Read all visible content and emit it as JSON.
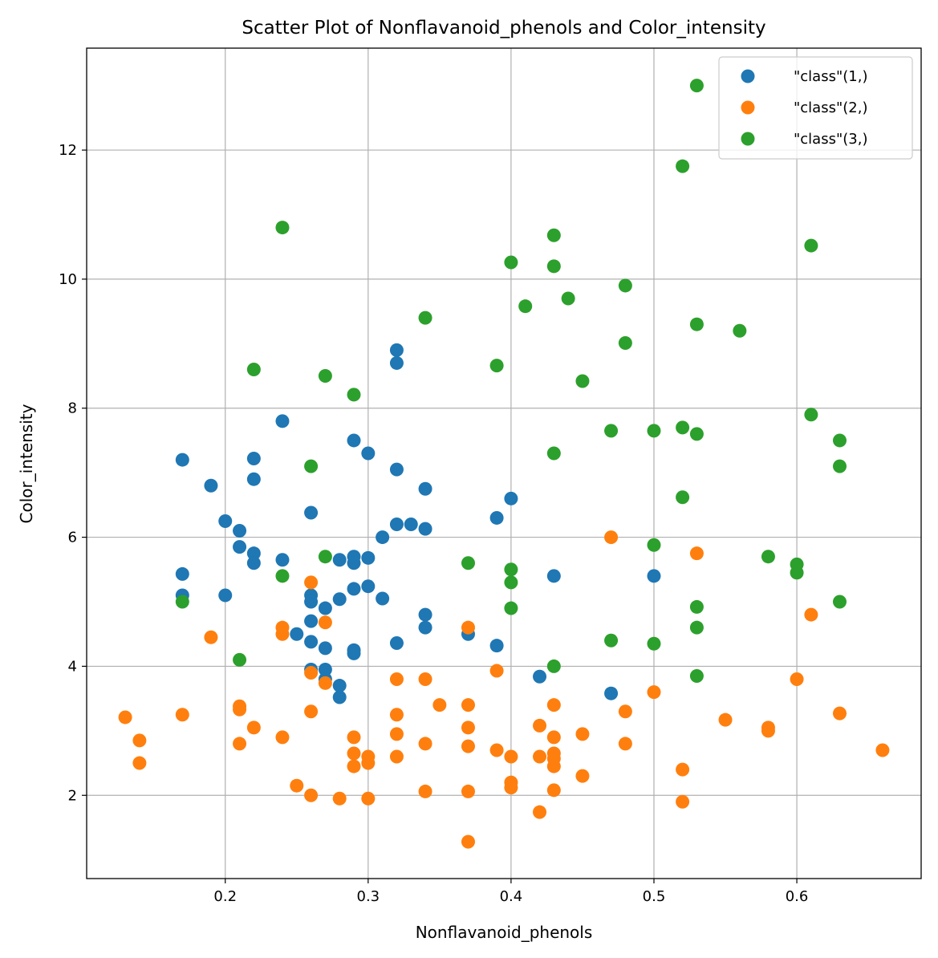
{
  "chart_data": {
    "type": "scatter",
    "title": "Scatter Plot of Nonflavanoid_phenols and Color_intensity",
    "xlabel": "Nonflavanoid_phenols",
    "ylabel": "Color_intensity",
    "xlim": [
      0.103,
      0.687
    ],
    "ylim": [
      0.71,
      13.58
    ],
    "xticks": [
      0.2,
      0.3,
      0.4,
      0.5,
      0.6
    ],
    "xtick_labels": [
      "0.2",
      "0.3",
      "0.4",
      "0.5",
      "0.6"
    ],
    "yticks": [
      2,
      4,
      6,
      8,
      10,
      12
    ],
    "ytick_labels": [
      "2",
      "4",
      "6",
      "8",
      "10",
      "12"
    ],
    "grid": true,
    "legend_position": "top-right",
    "series": [
      {
        "name": "\"class\"(1,)",
        "color": "#1f77b4",
        "points": [
          [
            0.17,
            7.2
          ],
          [
            0.17,
            5.43
          ],
          [
            0.17,
            5.1
          ],
          [
            0.19,
            6.8
          ],
          [
            0.2,
            6.25
          ],
          [
            0.2,
            5.1
          ],
          [
            0.21,
            6.1
          ],
          [
            0.21,
            5.85
          ],
          [
            0.22,
            7.22
          ],
          [
            0.22,
            6.9
          ],
          [
            0.22,
            5.75
          ],
          [
            0.22,
            5.6
          ],
          [
            0.24,
            7.8
          ],
          [
            0.24,
            5.65
          ],
          [
            0.25,
            4.5
          ],
          [
            0.26,
            6.38
          ],
          [
            0.26,
            5.1
          ],
          [
            0.26,
            5.0
          ],
          [
            0.26,
            4.7
          ],
          [
            0.26,
            4.38
          ],
          [
            0.26,
            3.95
          ],
          [
            0.27,
            4.9
          ],
          [
            0.27,
            4.28
          ],
          [
            0.27,
            3.95
          ],
          [
            0.27,
            3.8
          ],
          [
            0.28,
            5.65
          ],
          [
            0.28,
            5.04
          ],
          [
            0.28,
            3.7
          ],
          [
            0.28,
            3.52
          ],
          [
            0.29,
            7.5
          ],
          [
            0.29,
            5.7
          ],
          [
            0.29,
            5.6
          ],
          [
            0.29,
            5.2
          ],
          [
            0.29,
            4.25
          ],
          [
            0.29,
            4.2
          ],
          [
            0.3,
            7.3
          ],
          [
            0.3,
            5.68
          ],
          [
            0.3,
            5.24
          ],
          [
            0.31,
            6.0
          ],
          [
            0.31,
            5.05
          ],
          [
            0.32,
            8.9
          ],
          [
            0.32,
            8.7
          ],
          [
            0.32,
            7.05
          ],
          [
            0.32,
            6.2
          ],
          [
            0.32,
            4.36
          ],
          [
            0.33,
            6.2
          ],
          [
            0.34,
            6.75
          ],
          [
            0.34,
            6.13
          ],
          [
            0.34,
            4.8
          ],
          [
            0.34,
            4.6
          ],
          [
            0.37,
            4.5
          ],
          [
            0.39,
            6.3
          ],
          [
            0.39,
            4.32
          ],
          [
            0.4,
            6.6
          ],
          [
            0.42,
            3.84
          ],
          [
            0.43,
            5.4
          ],
          [
            0.47,
            3.58
          ],
          [
            0.5,
            5.4
          ]
        ]
      },
      {
        "name": "\"class\"(2,)",
        "color": "#ff7f0e",
        "points": [
          [
            0.13,
            3.21
          ],
          [
            0.14,
            2.85
          ],
          [
            0.14,
            2.5
          ],
          [
            0.17,
            3.25
          ],
          [
            0.19,
            4.45
          ],
          [
            0.21,
            3.38
          ],
          [
            0.21,
            3.33
          ],
          [
            0.21,
            2.8
          ],
          [
            0.22,
            3.05
          ],
          [
            0.24,
            4.6
          ],
          [
            0.24,
            4.5
          ],
          [
            0.24,
            2.9
          ],
          [
            0.25,
            2.15
          ],
          [
            0.26,
            5.3
          ],
          [
            0.26,
            3.9
          ],
          [
            0.26,
            3.3
          ],
          [
            0.26,
            2.0
          ],
          [
            0.27,
            4.68
          ],
          [
            0.27,
            3.74
          ],
          [
            0.28,
            1.95
          ],
          [
            0.29,
            2.9
          ],
          [
            0.29,
            2.65
          ],
          [
            0.29,
            2.45
          ],
          [
            0.3,
            2.6
          ],
          [
            0.3,
            2.5
          ],
          [
            0.3,
            1.95
          ],
          [
            0.32,
            3.8
          ],
          [
            0.32,
            3.25
          ],
          [
            0.32,
            2.95
          ],
          [
            0.32,
            2.6
          ],
          [
            0.34,
            3.8
          ],
          [
            0.34,
            2.8
          ],
          [
            0.34,
            2.06
          ],
          [
            0.35,
            3.4
          ],
          [
            0.37,
            4.6
          ],
          [
            0.37,
            3.4
          ],
          [
            0.37,
            3.05
          ],
          [
            0.37,
            2.76
          ],
          [
            0.37,
            2.06
          ],
          [
            0.37,
            1.28
          ],
          [
            0.39,
            3.93
          ],
          [
            0.39,
            2.7
          ],
          [
            0.4,
            2.6
          ],
          [
            0.4,
            2.2
          ],
          [
            0.4,
            2.12
          ],
          [
            0.42,
            3.08
          ],
          [
            0.42,
            2.6
          ],
          [
            0.42,
            1.74
          ],
          [
            0.43,
            3.4
          ],
          [
            0.43,
            2.9
          ],
          [
            0.43,
            2.65
          ],
          [
            0.43,
            2.57
          ],
          [
            0.43,
            2.45
          ],
          [
            0.43,
            2.08
          ],
          [
            0.45,
            2.95
          ],
          [
            0.45,
            2.3
          ],
          [
            0.47,
            6.0
          ],
          [
            0.48,
            3.3
          ],
          [
            0.48,
            2.8
          ],
          [
            0.5,
            3.6
          ],
          [
            0.52,
            2.4
          ],
          [
            0.52,
            1.9
          ],
          [
            0.53,
            5.75
          ],
          [
            0.55,
            3.17
          ],
          [
            0.58,
            3.05
          ],
          [
            0.58,
            3.0
          ],
          [
            0.6,
            3.8
          ],
          [
            0.61,
            4.8
          ],
          [
            0.63,
            3.27
          ],
          [
            0.66,
            2.7
          ]
        ]
      },
      {
        "name": "\"class\"(3,)",
        "color": "#2ca02c",
        "points": [
          [
            0.17,
            5.0
          ],
          [
            0.21,
            4.1
          ],
          [
            0.22,
            8.6
          ],
          [
            0.24,
            10.8
          ],
          [
            0.24,
            5.4
          ],
          [
            0.26,
            7.1
          ],
          [
            0.27,
            8.5
          ],
          [
            0.27,
            5.7
          ],
          [
            0.29,
            8.21
          ],
          [
            0.34,
            9.4
          ],
          [
            0.37,
            5.6
          ],
          [
            0.39,
            8.66
          ],
          [
            0.4,
            10.26
          ],
          [
            0.4,
            5.5
          ],
          [
            0.4,
            5.3
          ],
          [
            0.4,
            4.9
          ],
          [
            0.41,
            9.58
          ],
          [
            0.43,
            10.68
          ],
          [
            0.43,
            10.2
          ],
          [
            0.43,
            7.3
          ],
          [
            0.43,
            4.0
          ],
          [
            0.44,
            9.7
          ],
          [
            0.45,
            8.42
          ],
          [
            0.47,
            7.65
          ],
          [
            0.47,
            4.4
          ],
          [
            0.48,
            9.9
          ],
          [
            0.48,
            9.01
          ],
          [
            0.5,
            7.65
          ],
          [
            0.5,
            5.88
          ],
          [
            0.5,
            4.35
          ],
          [
            0.52,
            11.75
          ],
          [
            0.52,
            7.7
          ],
          [
            0.52,
            6.62
          ],
          [
            0.53,
            13.0
          ],
          [
            0.53,
            9.3
          ],
          [
            0.53,
            7.6
          ],
          [
            0.53,
            4.92
          ],
          [
            0.53,
            4.6
          ],
          [
            0.53,
            3.85
          ],
          [
            0.56,
            9.2
          ],
          [
            0.58,
            5.7
          ],
          [
            0.6,
            5.58
          ],
          [
            0.6,
            5.45
          ],
          [
            0.61,
            10.52
          ],
          [
            0.61,
            7.9
          ],
          [
            0.63,
            7.5
          ],
          [
            0.63,
            7.1
          ],
          [
            0.63,
            5.0
          ]
        ]
      }
    ]
  }
}
